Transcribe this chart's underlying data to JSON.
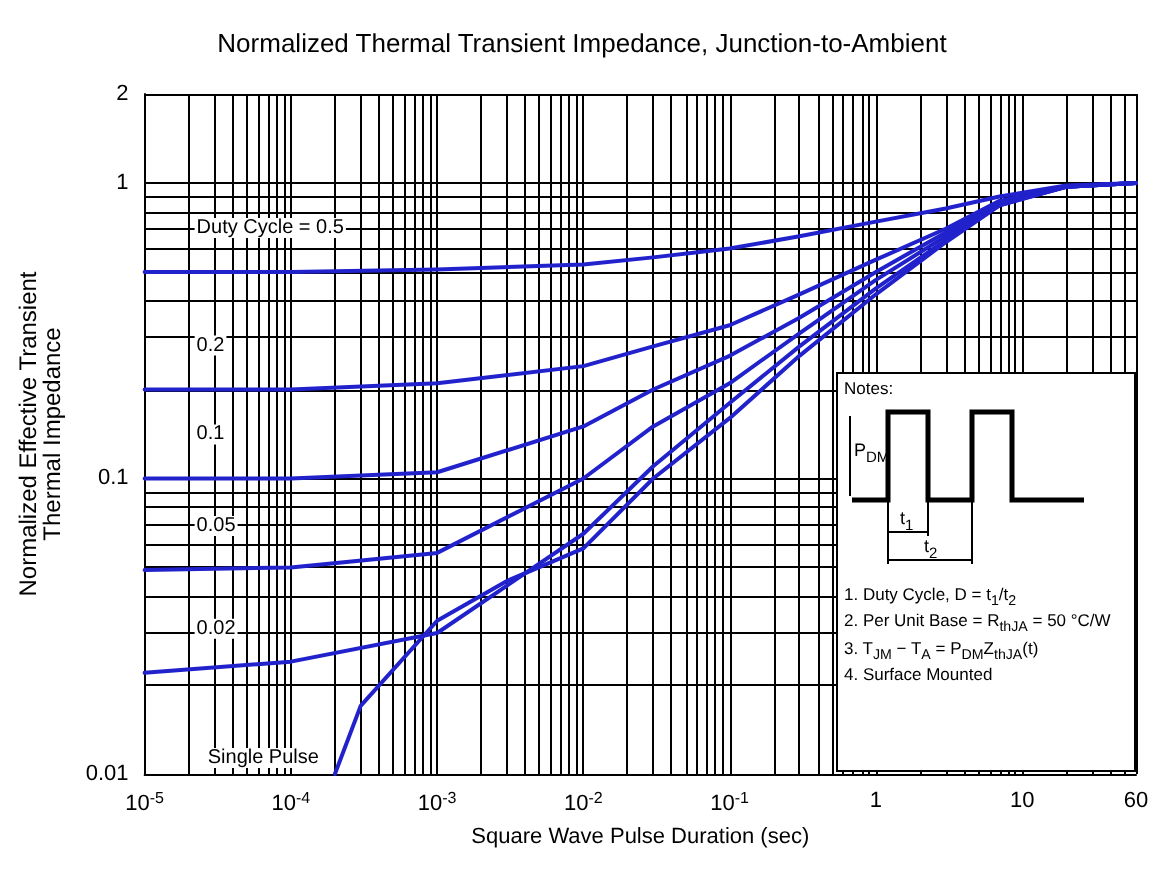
{
  "chart_data": {
    "type": "line",
    "title": "Normalized Thermal Transient Impedance, Junction-to-Ambient",
    "xlabel": "Square Wave Pulse Duration (sec)",
    "ylabel": "Normalized Effective Transient\nThermal Impedance",
    "log": "xy",
    "grid": true,
    "marker": "none",
    "line_style": "solid",
    "xlim": [
      1e-05,
      60
    ],
    "ylim": [
      0.01,
      2
    ],
    "xticks": [
      {
        "value": 1e-05,
        "label": "10$^{-5}$"
      },
      {
        "value": 0.0001,
        "label": "10$^{-4}$"
      },
      {
        "value": 0.001,
        "label": "10$^{-3}$"
      },
      {
        "value": 0.01,
        "label": "10$^{-2}$"
      },
      {
        "value": 0.1,
        "label": "10$^{-1}$"
      },
      1,
      10,
      60
    ],
    "yticks": [
      0.01,
      0.1,
      1,
      2
    ],
    "x": [
      1e-05,
      0.0001,
      0.001,
      0.01,
      0.03,
      0.1,
      0.3,
      1,
      3,
      7,
      20,
      60
    ],
    "series": [
      {
        "name": "Duty Cycle = 0.5",
        "color": "#2222cc",
        "values": [
          0.5,
          0.5,
          0.51,
          0.53,
          0.56,
          0.6,
          0.66,
          0.74,
          0.82,
          0.9,
          0.98,
          1.0
        ]
      },
      {
        "name": "0.2",
        "color": "#2222cc",
        "values": [
          0.2,
          0.2,
          0.21,
          0.24,
          0.28,
          0.33,
          0.42,
          0.55,
          0.7,
          0.87,
          0.97,
          1.0
        ]
      },
      {
        "name": "0.1",
        "color": "#2222cc",
        "values": [
          0.1,
          0.1,
          0.105,
          0.15,
          0.2,
          0.26,
          0.35,
          0.5,
          0.68,
          0.86,
          0.97,
          1.0
        ]
      },
      {
        "name": "0.05",
        "color": "#2222cc",
        "values": [
          0.049,
          0.05,
          0.056,
          0.1,
          0.15,
          0.21,
          0.31,
          0.47,
          0.66,
          0.85,
          0.97,
          1.0
        ]
      },
      {
        "name": "0.02",
        "color": "#2222cc",
        "values": [
          0.022,
          0.024,
          0.03,
          0.065,
          0.11,
          0.18,
          0.28,
          0.44,
          0.64,
          0.84,
          0.97,
          1.0
        ]
      },
      {
        "name": "Single Pulse",
        "color": "#2222cc",
        "x": [
          0.0002,
          0.0003,
          0.001,
          0.003,
          0.01,
          0.03,
          0.1,
          0.3,
          1,
          3,
          7,
          20,
          60
        ],
        "values": [
          0.01,
          0.017,
          0.033,
          0.045,
          0.058,
          0.1,
          0.16,
          0.26,
          0.42,
          0.63,
          0.84,
          0.97,
          1.0
        ]
      }
    ],
    "annotations": [
      "Notes:",
      "P$_{DM}$",
      "t$_{1}$",
      "t$_{2}$",
      "1. Duty Cycle, D = t$_{1}$/t$_{2}$",
      "2. Per Unit Base = R$_{thJA}$ = 50 °C/W",
      "3. T$_{JM}$ − T$_{A}$ = P$_{DM}$Z$_{thJA}$(t)",
      "4. Surface Mounted"
    ]
  }
}
